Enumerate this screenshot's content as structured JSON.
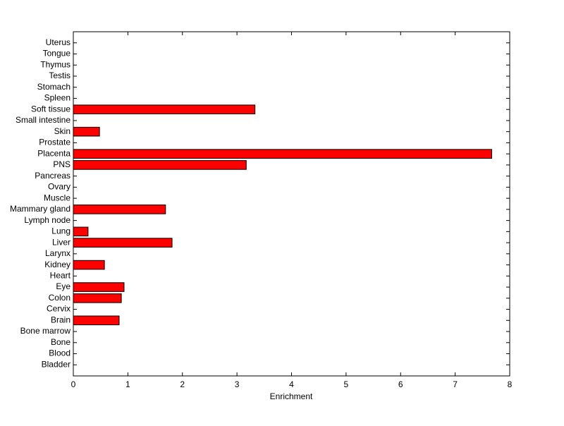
{
  "chart_data": {
    "type": "barh",
    "xlabel": "Enrichment",
    "categories": [
      "Bladder",
      "Blood",
      "Bone",
      "Bone marrow",
      "Brain",
      "Cervix",
      "Colon",
      "Eye",
      "Heart",
      "Kidney",
      "Larynx",
      "Liver",
      "Lung",
      "Lymph node",
      "Mammary gland",
      "Muscle",
      "Ovary",
      "Pancreas",
      "PNS",
      "Placenta",
      "Prostate",
      "Skin",
      "Small intestine",
      "Soft tissue",
      "Spleen",
      "Stomach",
      "Testis",
      "Thymus",
      "Tongue",
      "Uterus"
    ],
    "values": [
      0,
      0,
      0,
      0,
      0.84,
      0,
      0.88,
      0.93,
      0,
      0.57,
      0,
      1.81,
      0.27,
      0,
      1.69,
      0,
      0,
      0,
      3.17,
      7.67,
      0,
      0.48,
      0,
      3.33,
      0,
      0,
      0,
      0,
      0,
      0
    ],
    "color": "#ff0000",
    "xlim": [
      0,
      8
    ],
    "xticks": [
      0,
      1,
      2,
      3,
      4,
      5,
      6,
      7,
      8
    ],
    "grid": false
  }
}
